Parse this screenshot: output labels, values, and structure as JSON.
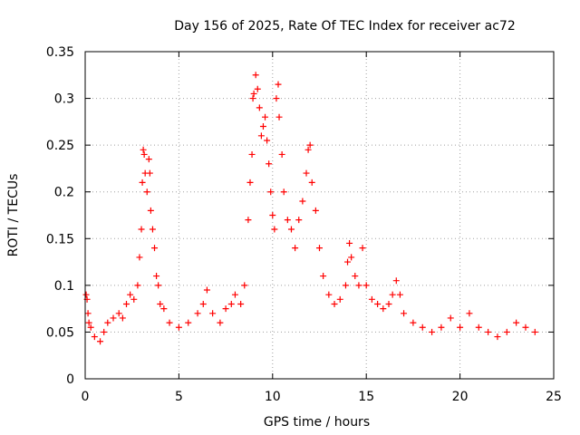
{
  "chart_data": {
    "type": "scatter",
    "title": "Day 156 of 2025, Rate Of TEC Index for receiver ac72",
    "xlabel": "GPS time / hours",
    "ylabel": "ROTI / TECUs",
    "xlim": [
      0,
      25
    ],
    "ylim": [
      0,
      0.35
    ],
    "x_ticks": [
      0,
      5,
      10,
      15,
      20,
      25
    ],
    "y_ticks": [
      0,
      0.05,
      0.1,
      0.15,
      0.2,
      0.25,
      0.3,
      0.35
    ],
    "x_tick_labels": [
      "0",
      "5",
      "10",
      "15",
      "20",
      "25"
    ],
    "y_tick_labels": [
      "0",
      "0.05",
      "0.1",
      "0.15",
      "0.2",
      "0.25",
      "0.3",
      "0.35"
    ],
    "grid": true,
    "marker": "plus",
    "color": "#ff0000",
    "series": [
      {
        "points": [
          [
            0.05,
            0.09
          ],
          [
            0.1,
            0.085
          ],
          [
            0.15,
            0.07
          ],
          [
            0.2,
            0.06
          ],
          [
            0.3,
            0.055
          ],
          [
            0.5,
            0.045
          ],
          [
            0.8,
            0.04
          ],
          [
            1.0,
            0.05
          ],
          [
            1.2,
            0.06
          ],
          [
            1.5,
            0.065
          ],
          [
            1.8,
            0.07
          ],
          [
            2.0,
            0.065
          ],
          [
            2.2,
            0.08
          ],
          [
            2.4,
            0.09
          ],
          [
            2.6,
            0.085
          ],
          [
            2.8,
            0.1
          ],
          [
            2.9,
            0.13
          ],
          [
            3.0,
            0.16
          ],
          [
            3.05,
            0.21
          ],
          [
            3.1,
            0.245
          ],
          [
            3.15,
            0.24
          ],
          [
            3.2,
            0.22
          ],
          [
            3.3,
            0.2
          ],
          [
            3.4,
            0.235
          ],
          [
            3.45,
            0.22
          ],
          [
            3.5,
            0.18
          ],
          [
            3.6,
            0.16
          ],
          [
            3.7,
            0.14
          ],
          [
            3.8,
            0.11
          ],
          [
            3.9,
            0.1
          ],
          [
            4.0,
            0.08
          ],
          [
            4.2,
            0.075
          ],
          [
            4.5,
            0.06
          ],
          [
            5.0,
            0.055
          ],
          [
            5.5,
            0.06
          ],
          [
            6.0,
            0.07
          ],
          [
            6.3,
            0.08
          ],
          [
            6.5,
            0.095
          ],
          [
            6.8,
            0.07
          ],
          [
            7.2,
            0.06
          ],
          [
            7.5,
            0.075
          ],
          [
            7.8,
            0.08
          ],
          [
            8.0,
            0.09
          ],
          [
            8.3,
            0.08
          ],
          [
            8.5,
            0.1
          ],
          [
            8.7,
            0.17
          ],
          [
            8.8,
            0.21
          ],
          [
            8.9,
            0.24
          ],
          [
            8.95,
            0.3
          ],
          [
            9.0,
            0.305
          ],
          [
            9.1,
            0.325
          ],
          [
            9.2,
            0.31
          ],
          [
            9.3,
            0.29
          ],
          [
            9.4,
            0.26
          ],
          [
            9.5,
            0.27
          ],
          [
            9.6,
            0.28
          ],
          [
            9.7,
            0.255
          ],
          [
            9.8,
            0.23
          ],
          [
            9.9,
            0.2
          ],
          [
            10.0,
            0.175
          ],
          [
            10.1,
            0.16
          ],
          [
            10.2,
            0.3
          ],
          [
            10.3,
            0.315
          ],
          [
            10.35,
            0.28
          ],
          [
            10.5,
            0.24
          ],
          [
            10.6,
            0.2
          ],
          [
            10.8,
            0.17
          ],
          [
            11.0,
            0.16
          ],
          [
            11.2,
            0.14
          ],
          [
            11.4,
            0.17
          ],
          [
            11.6,
            0.19
          ],
          [
            11.8,
            0.22
          ],
          [
            11.9,
            0.245
          ],
          [
            12.0,
            0.25
          ],
          [
            12.1,
            0.21
          ],
          [
            12.3,
            0.18
          ],
          [
            12.5,
            0.14
          ],
          [
            12.7,
            0.11
          ],
          [
            13.0,
            0.09
          ],
          [
            13.3,
            0.08
          ],
          [
            13.6,
            0.085
          ],
          [
            13.9,
            0.1
          ],
          [
            14.0,
            0.125
          ],
          [
            14.1,
            0.145
          ],
          [
            14.2,
            0.13
          ],
          [
            14.4,
            0.11
          ],
          [
            14.6,
            0.1
          ],
          [
            14.8,
            0.14
          ],
          [
            15.0,
            0.1
          ],
          [
            15.3,
            0.085
          ],
          [
            15.6,
            0.08
          ],
          [
            15.9,
            0.075
          ],
          [
            16.2,
            0.08
          ],
          [
            16.4,
            0.09
          ],
          [
            16.6,
            0.105
          ],
          [
            16.8,
            0.09
          ],
          [
            17.0,
            0.07
          ],
          [
            17.5,
            0.06
          ],
          [
            18.0,
            0.055
          ],
          [
            18.5,
            0.05
          ],
          [
            19.0,
            0.055
          ],
          [
            19.5,
            0.065
          ],
          [
            20.0,
            0.055
          ],
          [
            20.5,
            0.07
          ],
          [
            21.0,
            0.055
          ],
          [
            21.5,
            0.05
          ],
          [
            22.0,
            0.045
          ],
          [
            22.5,
            0.05
          ],
          [
            23.0,
            0.06
          ],
          [
            23.5,
            0.055
          ],
          [
            24.0,
            0.05
          ]
        ]
      }
    ]
  }
}
